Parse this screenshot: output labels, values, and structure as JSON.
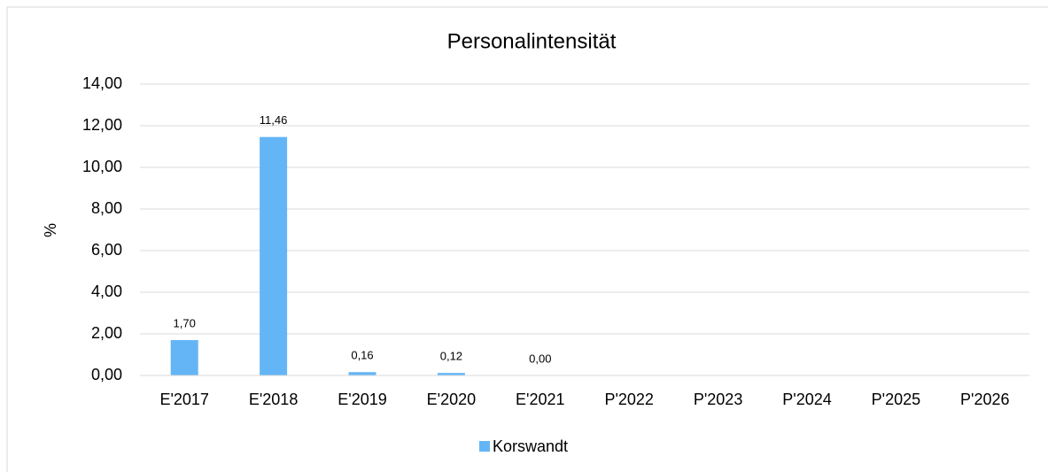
{
  "chart_data": {
    "type": "bar",
    "title": "Personalintensität",
    "y_label": "%",
    "categories": [
      "E'2017",
      "E'2018",
      "E'2019",
      "E'2020",
      "E'2021",
      "P'2022",
      "P'2023",
      "P'2024",
      "P'2025",
      "P'2026"
    ],
    "series": [
      {
        "name": "Korswandt",
        "color": "#64b5f6",
        "values": [
          1.7,
          11.46,
          0.16,
          0.12,
          0.0,
          null,
          null,
          null,
          null,
          null
        ],
        "value_labels": [
          "1,70",
          "11,46",
          "0,16",
          "0,12",
          "0,00",
          null,
          null,
          null,
          null,
          null
        ]
      }
    ],
    "ylim": [
      0,
      14
    ],
    "yticks": [
      {
        "value": 0,
        "label": "0,00"
      },
      {
        "value": 2,
        "label": "2,00"
      },
      {
        "value": 4,
        "label": "4,00"
      },
      {
        "value": 6,
        "label": "6,00"
      },
      {
        "value": 8,
        "label": "8,00"
      },
      {
        "value": 10,
        "label": "10,00"
      },
      {
        "value": 12,
        "label": "12,00"
      },
      {
        "value": 14,
        "label": "14,00"
      }
    ],
    "grid": true,
    "legend": "bottom"
  }
}
